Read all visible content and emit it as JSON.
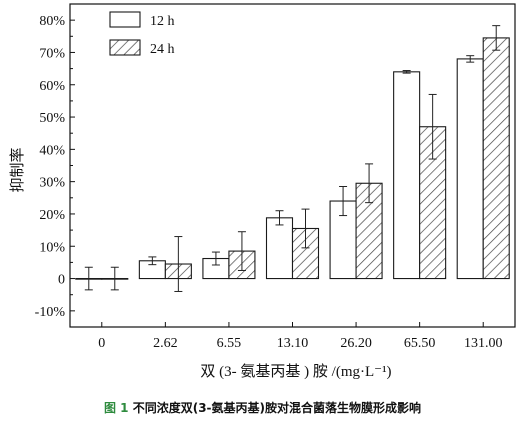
{
  "caption": {
    "label": "图 1",
    "text": "不同浓度双(3-氨基丙基)胺对混合菌落生物膜形成影响"
  },
  "chart_data": {
    "type": "bar",
    "title": "",
    "xlabel": "双 (3- 氨基丙基 ) 胺 /(mg·L⁻¹)",
    "ylabel": "抑制率",
    "ylim": [
      -15,
      85
    ],
    "yticks": [
      "-10%",
      "0",
      "10%",
      "20%",
      "30%",
      "40%",
      "50%",
      "60%",
      "70%",
      "80%"
    ],
    "ytick_values": [
      -10,
      0,
      10,
      20,
      30,
      40,
      50,
      60,
      70,
      80
    ],
    "categories": [
      "0",
      "2.62",
      "6.55",
      "13.10",
      "26.20",
      "65.50",
      "131.00"
    ],
    "series": [
      {
        "name": "12 h",
        "fill": "plain",
        "values": [
          0,
          5.5,
          6.2,
          18.8,
          24,
          64,
          68
        ],
        "errors": [
          3.5,
          1.2,
          2,
          2.2,
          4.5,
          0.4,
          1
        ]
      },
      {
        "name": "24 h",
        "fill": "hatched",
        "values": [
          0,
          4.5,
          8.5,
          15.5,
          29.5,
          47,
          74.5
        ],
        "errors": [
          3.5,
          8.5,
          6,
          6,
          6,
          10,
          3.8
        ]
      }
    ],
    "legend_position": "top-left",
    "grid": false,
    "colors": {
      "bar_stroke": "#1a1a1a",
      "hatch": "#444444",
      "axis": "#111111"
    }
  }
}
